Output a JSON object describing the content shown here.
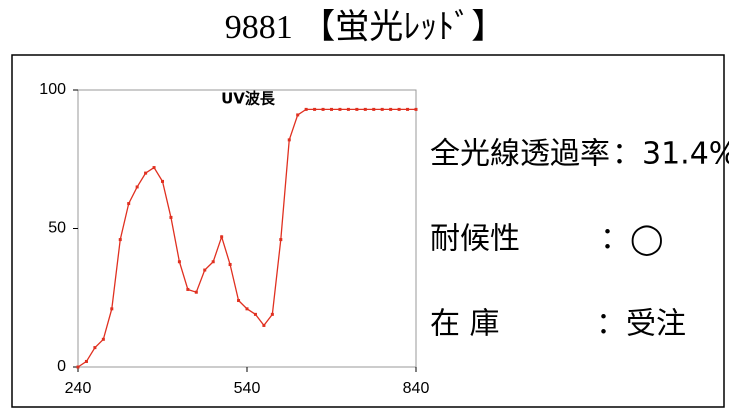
{
  "title": "9881 【蛍光ﾚｯﾄﾞ】",
  "info": {
    "transmittance": {
      "label": "全光線透過率",
      "value": "：31.4%"
    },
    "weather": {
      "label": "耐候性",
      "value": "：◯"
    },
    "stock": {
      "label": "在 庫",
      "value": "：受注"
    }
  },
  "chart_data": {
    "type": "line",
    "title": "UV波長",
    "x": [
      240,
      255,
      270,
      285,
      300,
      315,
      330,
      345,
      360,
      375,
      390,
      405,
      420,
      435,
      450,
      465,
      480,
      495,
      510,
      525,
      540,
      555,
      570,
      585,
      600,
      615,
      630,
      645,
      660,
      675,
      690,
      705,
      720,
      735,
      750,
      765,
      780,
      795,
      810,
      825,
      840
    ],
    "series": [
      {
        "name": "UV波長",
        "color": "#e03020",
        "values": [
          0,
          2,
          7,
          10,
          21,
          46,
          59,
          65,
          70,
          72,
          67,
          54,
          38,
          28,
          27,
          35,
          38,
          47,
          37,
          24,
          21,
          19,
          15,
          19,
          46,
          82,
          91,
          93,
          93,
          93,
          93,
          93,
          93,
          93,
          93,
          93,
          93,
          93,
          93,
          93,
          93
        ]
      }
    ],
    "xlim": [
      240,
      840
    ],
    "xticks": [
      240,
      540,
      840
    ],
    "ylim": [
      0,
      100
    ],
    "yticks": [
      0,
      50,
      100
    ]
  }
}
